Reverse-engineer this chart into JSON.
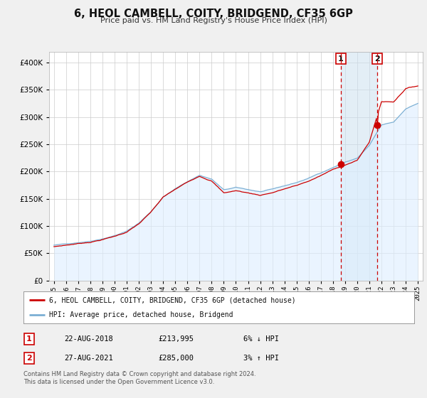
{
  "title": "6, HEOL CAMBELL, COITY, BRIDGEND, CF35 6GP",
  "subtitle": "Price paid vs. HM Land Registry's House Price Index (HPI)",
  "legend_house": "6, HEOL CAMBELL, COITY, BRIDGEND, CF35 6GP (detached house)",
  "legend_hpi": "HPI: Average price, detached house, Bridgend",
  "footnote1": "Contains HM Land Registry data © Crown copyright and database right 2024.",
  "footnote2": "This data is licensed under the Open Government Licence v3.0.",
  "marker1_date": "22-AUG-2018",
  "marker1_price": "£213,995",
  "marker1_hpi": "6% ↓ HPI",
  "marker2_date": "27-AUG-2021",
  "marker2_price": "£285,000",
  "marker2_hpi": "3% ↑ HPI",
  "house_color": "#cc0000",
  "hpi_color": "#7bafd4",
  "hpi_fill_color": "#ddeeff",
  "background_color": "#f0f0f0",
  "plot_bg_color": "#ffffff",
  "marker1_x": 2018.65,
  "marker2_x": 2021.65,
  "marker1_y": 213995,
  "marker2_y": 285000,
  "ylim": [
    0,
    420000
  ],
  "xlim": [
    1994.6,
    2025.4
  ]
}
